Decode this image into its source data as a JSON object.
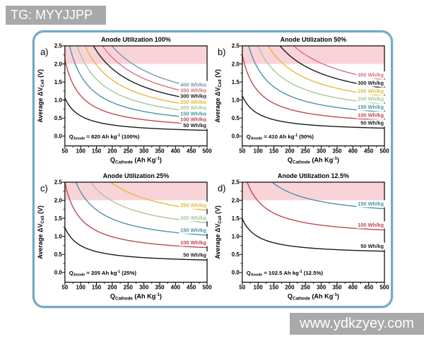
{
  "watermarks": {
    "top_left": "TG: MYYJJPP",
    "bottom_right": "www.ydkzyey.com"
  },
  "colors": {
    "frame_border": "#74a9c7",
    "watermark_bar": "#a9a9a9",
    "watermark_text": "#ffffff",
    "shaded_band": "#f8d3d8",
    "axis": "#000000"
  },
  "chart_data": {
    "type": "line",
    "curve_rule": "Each curve is a constant specific-energy contour: Average dV_cell (V) = E * (1/Q_cathode + 1/Q_anode), with E in Wh/kg and Q in Ah/kg, plotted for Q_cathode from 50 to 500 and clipped at 2.5 V",
    "x_axis": {
      "label_parts": [
        {
          "t": "Q"
        },
        {
          "t": "Cathode",
          "s": "sub"
        },
        {
          "t": " (Ah Kg"
        },
        {
          "t": "-1",
          "s": "sup"
        },
        {
          "t": ")"
        }
      ],
      "min": 50,
      "max": 500,
      "ticks": [
        50,
        100,
        150,
        200,
        250,
        300,
        350,
        400,
        450,
        500
      ],
      "minor_step": 25
    },
    "y_axis": {
      "label_parts": [
        {
          "t": "Average ΔV"
        },
        {
          "t": "Cell",
          "s": "sub"
        },
        {
          "t": " (V)"
        }
      ],
      "min": 0.0,
      "max": 2.5,
      "ticks": [
        0.0,
        0.5,
        1.0,
        1.5,
        2.0,
        2.5
      ],
      "tick_labels": [
        "0.0",
        "0.5",
        "1.0",
        "1.5",
        "2.0",
        "2.5"
      ],
      "minor_step": 0.25
    },
    "shaded_band": {
      "from": 2.0,
      "to": 2.5
    },
    "series_colors": {
      "50": "#1a1a1a",
      "100": "#c2464f",
      "150": "#4d92a6",
      "200": "#a7c79c",
      "250": "#e5b93c",
      "300": "#1a1a1a",
      "350": "#d8717f",
      "400": "#7597b4"
    },
    "panels": [
      {
        "letter": "a)",
        "title": "Anode Utilization 100%",
        "q_anode_ah_per_kg": 820,
        "annotation_parts": [
          {
            "t": "Q"
          },
          {
            "t": "Anode",
            "s": "sub"
          },
          {
            "t": " = 820 Ah kg"
          },
          {
            "t": "-1",
            "s": "sup"
          },
          {
            "t": " (100%)"
          }
        ],
        "series": [
          {
            "label": "400 Wh/kg",
            "energy_wh_per_kg": 400,
            "v_at_q500": 1.29
          },
          {
            "label": "350 Wh/kg",
            "energy_wh_per_kg": 350,
            "v_at_q500": 1.13
          },
          {
            "label": "300 Wh/kg",
            "energy_wh_per_kg": 300,
            "v_at_q500": 0.97
          },
          {
            "label": "250 Wh/kg",
            "energy_wh_per_kg": 250,
            "v_at_q500": 0.81
          },
          {
            "label": "200 Wh/kg",
            "energy_wh_per_kg": 200,
            "v_at_q500": 0.64
          },
          {
            "label": "150 Wh/kg",
            "energy_wh_per_kg": 150,
            "v_at_q500": 0.48
          },
          {
            "label": "100 Wh/kg",
            "energy_wh_per_kg": 100,
            "v_at_q500": 0.32
          },
          {
            "label": "50 Wh/kg",
            "energy_wh_per_kg": 50,
            "v_at_q500": 0.16
          }
        ]
      },
      {
        "letter": "b)",
        "title": "Anode Utilization 50%",
        "q_anode_ah_per_kg": 410,
        "annotation_parts": [
          {
            "t": "Q"
          },
          {
            "t": "Anode",
            "s": "sub"
          },
          {
            "t": " = 410 Ah kg"
          },
          {
            "t": "-1",
            "s": "sup"
          },
          {
            "t": " (50%)"
          }
        ],
        "series": [
          {
            "label": "350 Wh/kg",
            "energy_wh_per_kg": 350,
            "v_at_q500": 1.55
          },
          {
            "label": "300 Wh/kg",
            "energy_wh_per_kg": 300,
            "v_at_q500": 1.33
          },
          {
            "label": "250 Wh/kg",
            "energy_wh_per_kg": 250,
            "v_at_q500": 1.11
          },
          {
            "label": "200 Wh/kg",
            "energy_wh_per_kg": 200,
            "v_at_q500": 0.89
          },
          {
            "label": "150 Wh/kg",
            "energy_wh_per_kg": 150,
            "v_at_q500": 0.67
          },
          {
            "label": "100 Wh/kg",
            "energy_wh_per_kg": 100,
            "v_at_q500": 0.44
          },
          {
            "label": "50 Wh/kg",
            "energy_wh_per_kg": 50,
            "v_at_q500": 0.22
          }
        ]
      },
      {
        "letter": "c)",
        "title": "Anode Utilization 25%",
        "q_anode_ah_per_kg": 205,
        "annotation_parts": [
          {
            "t": "Q"
          },
          {
            "t": "Anode",
            "s": "sub"
          },
          {
            "t": " = 205 Ah kg"
          },
          {
            "t": "-1",
            "s": "sup"
          },
          {
            "t": " (25%)"
          }
        ],
        "series": [
          {
            "label": "250 Wh/kg",
            "energy_wh_per_kg": 250,
            "v_at_q500": 1.72
          },
          {
            "label": "200 Wh/kg",
            "energy_wh_per_kg": 200,
            "v_at_q500": 1.38
          },
          {
            "label": "150 Wh/kg",
            "energy_wh_per_kg": 150,
            "v_at_q500": 1.03
          },
          {
            "label": "100 Wh/kg",
            "energy_wh_per_kg": 100,
            "v_at_q500": 0.69
          },
          {
            "label": "50 Wh/kg",
            "energy_wh_per_kg": 50,
            "v_at_q500": 0.34
          }
        ]
      },
      {
        "letter": "d)",
        "title": "Anode Utilization 12.5%",
        "q_anode_ah_per_kg": 102.5,
        "annotation_parts": [
          {
            "t": "Q"
          },
          {
            "t": "Anode",
            "s": "sub"
          },
          {
            "t": " = 102.5 Ah kg"
          },
          {
            "t": "-1",
            "s": "sup"
          },
          {
            "t": " (12.5%)"
          }
        ],
        "series": [
          {
            "label": "150 Wh/kg",
            "energy_wh_per_kg": 150,
            "v_at_q500": 1.76
          },
          {
            "label": "100 Wh/kg",
            "energy_wh_per_kg": 100,
            "v_at_q500": 1.18
          },
          {
            "label": "50 Wh/kg",
            "energy_wh_per_kg": 50,
            "v_at_q500": 0.59
          }
        ]
      }
    ]
  }
}
